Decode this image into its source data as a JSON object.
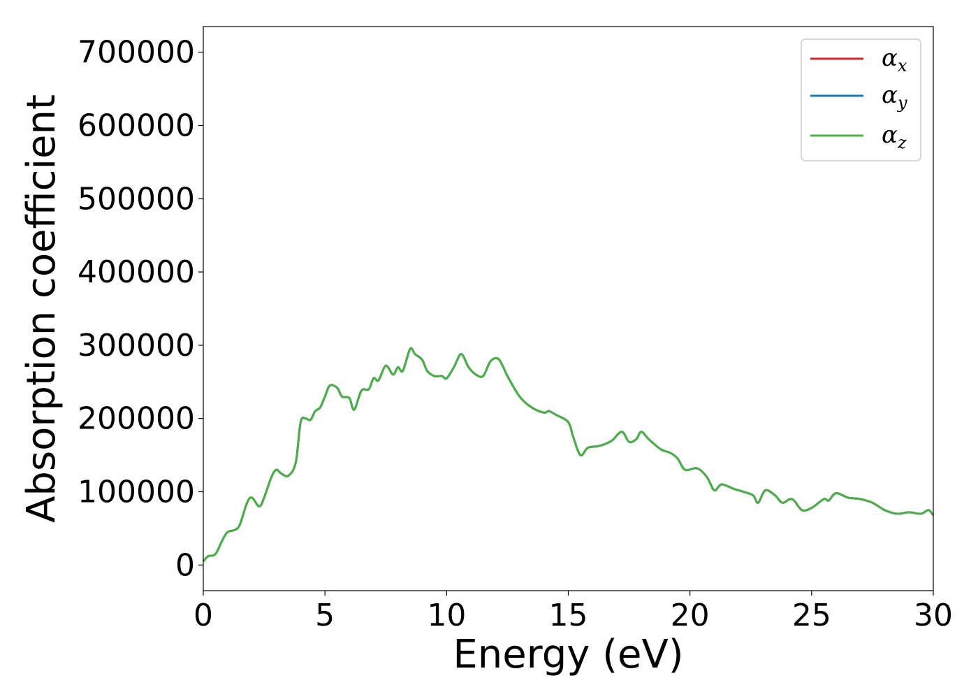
{
  "chart_data": {
    "type": "line",
    "title": "",
    "xlabel": "Energy (eV)",
    "ylabel": "Absorption coefficient",
    "xlim": [
      0,
      30
    ],
    "ylim": [
      -35000,
      735000
    ],
    "xticks": [
      0,
      5,
      10,
      15,
      20,
      25,
      30
    ],
    "xtick_labels": [
      "0",
      "5",
      "10",
      "15",
      "20",
      "25",
      "30"
    ],
    "yticks": [
      0,
      100000,
      200000,
      300000,
      400000,
      500000,
      600000,
      700000
    ],
    "ytick_labels": [
      "0",
      "100000",
      "200000",
      "300000",
      "400000",
      "500000",
      "600000",
      "700000"
    ],
    "grid": false,
    "legend_position": "top-right",
    "x": [
      0,
      0.2,
      0.5,
      0.8,
      1.0,
      1.3,
      1.5,
      1.8,
      2.0,
      2.3,
      2.5,
      2.8,
      3.0,
      3.2,
      3.5,
      3.8,
      4.0,
      4.2,
      4.4,
      4.6,
      4.8,
      5.0,
      5.2,
      5.5,
      5.7,
      6.0,
      6.2,
      6.5,
      6.8,
      7.0,
      7.2,
      7.5,
      7.8,
      8.0,
      8.2,
      8.5,
      8.7,
      9.0,
      9.2,
      9.5,
      9.8,
      10.0,
      10.3,
      10.6,
      10.9,
      11.2,
      11.5,
      11.8,
      12.1,
      12.3,
      12.5,
      13.0,
      13.5,
      14.0,
      14.2,
      14.5,
      15.0,
      15.2,
      15.5,
      15.8,
      16.2,
      16.5,
      16.8,
      17.2,
      17.5,
      17.8,
      18.0,
      18.3,
      18.8,
      19.2,
      19.5,
      19.8,
      20.3,
      20.7,
      21.0,
      21.3,
      21.8,
      22.2,
      22.6,
      22.8,
      23.1,
      23.5,
      23.8,
      24.2,
      24.6,
      25.0,
      25.5,
      25.7,
      26.0,
      26.5,
      27.0,
      27.5,
      28.0,
      28.5,
      29.0,
      29.5,
      29.8,
      30.0
    ],
    "series": [
      {
        "name": "αx",
        "color": "#d62728",
        "y": [
          5000,
          12000,
          15000,
          35000,
          45000,
          48000,
          55000,
          85000,
          92000,
          80000,
          92000,
          120000,
          130000,
          125000,
          122000,
          140000,
          195000,
          200000,
          198000,
          210000,
          215000,
          230000,
          245000,
          242000,
          230000,
          228000,
          212000,
          238000,
          240000,
          255000,
          252000,
          272000,
          260000,
          270000,
          265000,
          295000,
          288000,
          280000,
          265000,
          258000,
          258000,
          255000,
          270000,
          288000,
          270000,
          260000,
          258000,
          278000,
          282000,
          272000,
          258000,
          230000,
          215000,
          208000,
          210000,
          205000,
          195000,
          175000,
          150000,
          160000,
          162000,
          165000,
          170000,
          182000,
          168000,
          172000,
          182000,
          172000,
          158000,
          153000,
          145000,
          130000,
          132000,
          120000,
          102000,
          110000,
          104000,
          100000,
          95000,
          85000,
          102000,
          95000,
          85000,
          90000,
          75000,
          78000,
          90000,
          88000,
          98000,
          92000,
          90000,
          85000,
          75000,
          70000,
          72000,
          70000,
          75000,
          68000
        ]
      },
      {
        "name": "αy",
        "color": "#1f77b4",
        "y": [
          5000,
          12000,
          15000,
          35000,
          45000,
          48000,
          55000,
          85000,
          92000,
          80000,
          92000,
          120000,
          130000,
          125000,
          122000,
          140000,
          195000,
          200000,
          198000,
          210000,
          215000,
          230000,
          245000,
          242000,
          230000,
          228000,
          212000,
          238000,
          240000,
          255000,
          252000,
          272000,
          260000,
          270000,
          265000,
          295000,
          288000,
          280000,
          265000,
          258000,
          258000,
          255000,
          270000,
          288000,
          270000,
          260000,
          258000,
          278000,
          282000,
          272000,
          258000,
          230000,
          215000,
          208000,
          210000,
          205000,
          195000,
          175000,
          150000,
          160000,
          162000,
          165000,
          170000,
          182000,
          168000,
          172000,
          182000,
          172000,
          158000,
          153000,
          145000,
          130000,
          132000,
          120000,
          102000,
          110000,
          104000,
          100000,
          95000,
          85000,
          102000,
          95000,
          85000,
          90000,
          75000,
          78000,
          90000,
          88000,
          98000,
          92000,
          90000,
          85000,
          75000,
          70000,
          72000,
          70000,
          75000,
          68000
        ]
      },
      {
        "name": "αz",
        "color": "#4daf4a",
        "y": [
          5000,
          12000,
          15000,
          35000,
          45000,
          48000,
          55000,
          85000,
          92000,
          80000,
          92000,
          120000,
          130000,
          125000,
          122000,
          140000,
          195000,
          200000,
          198000,
          210000,
          215000,
          230000,
          245000,
          242000,
          230000,
          228000,
          212000,
          238000,
          240000,
          255000,
          252000,
          272000,
          260000,
          270000,
          265000,
          295000,
          288000,
          280000,
          265000,
          258000,
          258000,
          255000,
          270000,
          288000,
          270000,
          260000,
          258000,
          278000,
          282000,
          272000,
          258000,
          230000,
          215000,
          208000,
          210000,
          205000,
          195000,
          175000,
          150000,
          160000,
          162000,
          165000,
          170000,
          182000,
          168000,
          172000,
          182000,
          172000,
          158000,
          153000,
          145000,
          130000,
          132000,
          120000,
          102000,
          110000,
          104000,
          100000,
          95000,
          85000,
          102000,
          95000,
          85000,
          90000,
          75000,
          78000,
          90000,
          88000,
          98000,
          92000,
          90000,
          85000,
          75000,
          70000,
          72000,
          70000,
          75000,
          68000
        ]
      }
    ],
    "legend": [
      {
        "symbol": "α",
        "subscript": "x",
        "color": "#d62728"
      },
      {
        "symbol": "α",
        "subscript": "y",
        "color": "#1f77b4"
      },
      {
        "symbol": "α",
        "subscript": "z",
        "color": "#4daf4a"
      }
    ]
  }
}
